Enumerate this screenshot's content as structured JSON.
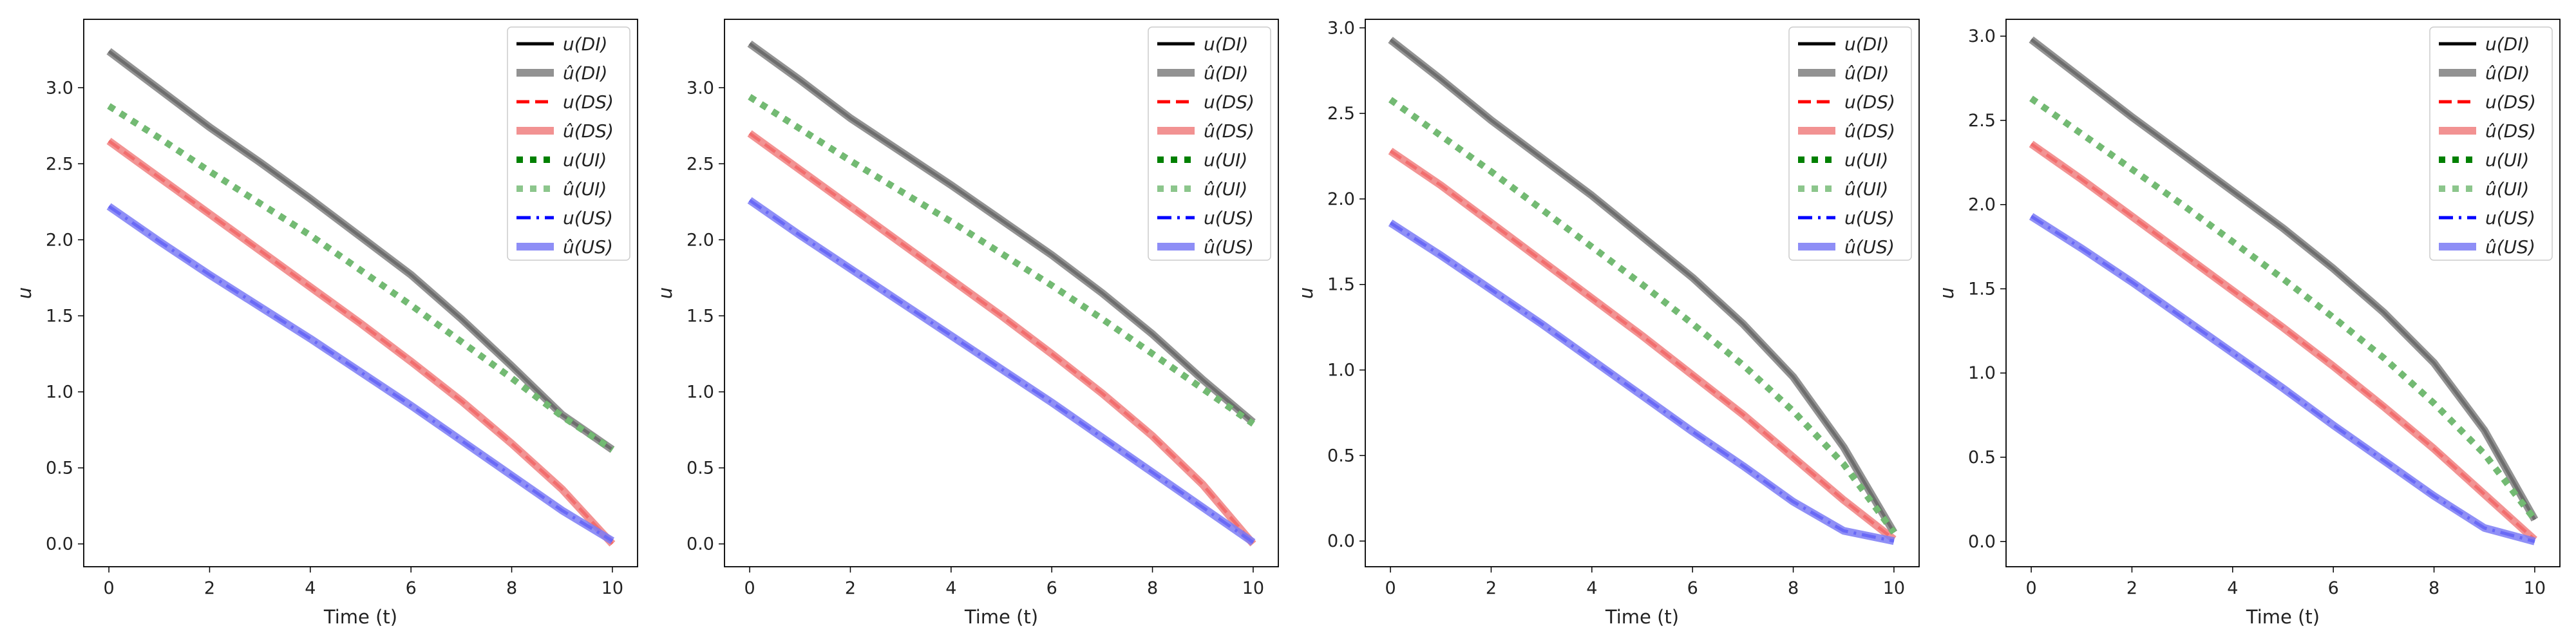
{
  "chart_data": [
    {
      "type": "line",
      "xlabel": "Time (t)",
      "ylabel": "u",
      "xlim": [
        -0.5,
        10.5
      ],
      "ylim": [
        -0.15,
        3.45
      ],
      "xticks": [
        0,
        2,
        4,
        6,
        8,
        10
      ],
      "yticks": [
        0.0,
        0.5,
        1.0,
        1.5,
        2.0,
        2.5,
        3.0
      ],
      "legend_position": "top-right",
      "series": [
        {
          "name": "u(DI)",
          "color": "#000000",
          "style": "solid",
          "x": [
            0,
            1,
            2,
            3,
            4,
            5,
            6,
            7,
            8,
            9,
            10
          ],
          "values": [
            3.24,
            2.99,
            2.74,
            2.51,
            2.27,
            2.02,
            1.77,
            1.48,
            1.17,
            0.85,
            0.62
          ]
        },
        {
          "name": "û(DI)",
          "color": "#808080",
          "style": "thick",
          "x": [
            0,
            1,
            2,
            3,
            4,
            5,
            6,
            7,
            8,
            9,
            10
          ],
          "values": [
            3.24,
            2.99,
            2.74,
            2.51,
            2.27,
            2.02,
            1.77,
            1.48,
            1.17,
            0.85,
            0.62
          ]
        },
        {
          "name": "u(DS)",
          "color": "#ff0000",
          "style": "dashed",
          "x": [
            0,
            1,
            2,
            3,
            4,
            5,
            6,
            7,
            8,
            9,
            10
          ],
          "values": [
            2.65,
            2.41,
            2.17,
            1.93,
            1.69,
            1.45,
            1.2,
            0.94,
            0.66,
            0.36,
            0.0
          ]
        },
        {
          "name": "û(DS)",
          "color": "#f08080",
          "style": "thick",
          "x": [
            0,
            1,
            2,
            3,
            4,
            5,
            6,
            7,
            8,
            9,
            10
          ],
          "values": [
            2.65,
            2.41,
            2.17,
            1.93,
            1.69,
            1.45,
            1.2,
            0.94,
            0.66,
            0.36,
            0.0
          ]
        },
        {
          "name": "u(UI)",
          "color": "#008000",
          "style": "dotted",
          "x": [
            0,
            1,
            2,
            3,
            4,
            5,
            6,
            7,
            8,
            9,
            10
          ],
          "values": [
            2.88,
            2.67,
            2.45,
            2.24,
            2.03,
            1.8,
            1.57,
            1.33,
            1.09,
            0.84,
            0.62
          ]
        },
        {
          "name": "û(UI)",
          "color": "#80c080",
          "style": "thick-dotted",
          "x": [
            0,
            1,
            2,
            3,
            4,
            5,
            6,
            7,
            8,
            9,
            10
          ],
          "values": [
            2.88,
            2.67,
            2.45,
            2.24,
            2.03,
            1.8,
            1.57,
            1.33,
            1.09,
            0.84,
            0.62
          ]
        },
        {
          "name": "u(US)",
          "color": "#0000ff",
          "style": "dashdot",
          "x": [
            0,
            1,
            2,
            3,
            4,
            5,
            6,
            7,
            8,
            9,
            10
          ],
          "values": [
            2.22,
            1.99,
            1.77,
            1.56,
            1.35,
            1.13,
            0.91,
            0.68,
            0.45,
            0.22,
            0.02
          ]
        },
        {
          "name": "û(US)",
          "color": "#7b7bf5",
          "style": "thick",
          "x": [
            0,
            1,
            2,
            3,
            4,
            5,
            6,
            7,
            8,
            9,
            10
          ],
          "values": [
            2.22,
            1.99,
            1.77,
            1.56,
            1.35,
            1.13,
            0.91,
            0.68,
            0.45,
            0.22,
            0.02
          ]
        }
      ]
    },
    {
      "type": "line",
      "xlabel": "Time (t)",
      "ylabel": "u",
      "xlim": [
        -0.5,
        10.5
      ],
      "ylim": [
        -0.15,
        3.45
      ],
      "xticks": [
        0,
        2,
        4,
        6,
        8,
        10
      ],
      "yticks": [
        0.0,
        0.5,
        1.0,
        1.5,
        2.0,
        2.5,
        3.0
      ],
      "legend_position": "top-right",
      "series": [
        {
          "name": "u(DI)",
          "color": "#000000",
          "style": "solid",
          "x": [
            0,
            1,
            2,
            3,
            4,
            5,
            6,
            7,
            8,
            9,
            10
          ],
          "values": [
            3.29,
            3.05,
            2.8,
            2.58,
            2.36,
            2.13,
            1.9,
            1.65,
            1.38,
            1.08,
            0.8
          ]
        },
        {
          "name": "û(DI)",
          "color": "#808080",
          "style": "thick",
          "x": [
            0,
            1,
            2,
            3,
            4,
            5,
            6,
            7,
            8,
            9,
            10
          ],
          "values": [
            3.29,
            3.05,
            2.8,
            2.58,
            2.36,
            2.13,
            1.9,
            1.65,
            1.38,
            1.08,
            0.8
          ]
        },
        {
          "name": "u(DS)",
          "color": "#ff0000",
          "style": "dashed",
          "x": [
            0,
            1,
            2,
            3,
            4,
            5,
            6,
            7,
            8,
            9,
            10
          ],
          "values": [
            2.7,
            2.46,
            2.22,
            1.98,
            1.74,
            1.5,
            1.25,
            0.99,
            0.71,
            0.39,
            0.0
          ]
        },
        {
          "name": "û(DS)",
          "color": "#f08080",
          "style": "thick",
          "x": [
            0,
            1,
            2,
            3,
            4,
            5,
            6,
            7,
            8,
            9,
            10
          ],
          "values": [
            2.7,
            2.46,
            2.22,
            1.98,
            1.74,
            1.5,
            1.25,
            0.99,
            0.71,
            0.39,
            0.0
          ]
        },
        {
          "name": "u(UI)",
          "color": "#008000",
          "style": "dotted",
          "x": [
            0,
            1,
            2,
            3,
            4,
            5,
            6,
            7,
            8,
            9,
            10
          ],
          "values": [
            2.94,
            2.73,
            2.52,
            2.32,
            2.12,
            1.91,
            1.7,
            1.48,
            1.25,
            1.02,
            0.79
          ]
        },
        {
          "name": "û(UI)",
          "color": "#80c080",
          "style": "thick-dotted",
          "x": [
            0,
            1,
            2,
            3,
            4,
            5,
            6,
            7,
            8,
            9,
            10
          ],
          "values": [
            2.94,
            2.73,
            2.52,
            2.32,
            2.12,
            1.91,
            1.7,
            1.48,
            1.25,
            1.02,
            0.79
          ]
        },
        {
          "name": "u(US)",
          "color": "#0000ff",
          "style": "dashdot",
          "x": [
            0,
            1,
            2,
            3,
            4,
            5,
            6,
            7,
            8,
            9,
            10
          ],
          "values": [
            2.26,
            2.03,
            1.81,
            1.59,
            1.37,
            1.15,
            0.93,
            0.7,
            0.47,
            0.24,
            0.01
          ]
        },
        {
          "name": "û(US)",
          "color": "#7b7bf5",
          "style": "thick",
          "x": [
            0,
            1,
            2,
            3,
            4,
            5,
            6,
            7,
            8,
            9,
            10
          ],
          "values": [
            2.26,
            2.03,
            1.81,
            1.59,
            1.37,
            1.15,
            0.93,
            0.7,
            0.47,
            0.24,
            0.01
          ]
        }
      ]
    },
    {
      "type": "line",
      "xlabel": "Time (t)",
      "ylabel": "u",
      "xlim": [
        -0.5,
        10.5
      ],
      "ylim": [
        -0.15,
        3.05
      ],
      "xticks": [
        0,
        2,
        4,
        6,
        8,
        10
      ],
      "yticks": [
        0.0,
        0.5,
        1.0,
        1.5,
        2.0,
        2.5,
        3.0
      ],
      "legend_position": "top-right",
      "series": [
        {
          "name": "u(DI)",
          "color": "#000000",
          "style": "solid",
          "x": [
            0,
            1,
            2,
            3,
            4,
            5,
            6,
            7,
            8,
            9,
            10
          ],
          "values": [
            2.93,
            2.7,
            2.46,
            2.24,
            2.02,
            1.78,
            1.54,
            1.27,
            0.96,
            0.55,
            0.05
          ]
        },
        {
          "name": "û(DI)",
          "color": "#808080",
          "style": "thick",
          "x": [
            0,
            1,
            2,
            3,
            4,
            5,
            6,
            7,
            8,
            9,
            10
          ],
          "values": [
            2.93,
            2.7,
            2.46,
            2.24,
            2.02,
            1.78,
            1.54,
            1.27,
            0.96,
            0.55,
            0.05
          ]
        },
        {
          "name": "u(DS)",
          "color": "#ff0000",
          "style": "dashed",
          "x": [
            0,
            1,
            2,
            3,
            4,
            5,
            6,
            7,
            8,
            9,
            10
          ],
          "values": [
            2.28,
            2.08,
            1.86,
            1.64,
            1.42,
            1.2,
            0.97,
            0.74,
            0.49,
            0.24,
            0.01
          ]
        },
        {
          "name": "û(DS)",
          "color": "#f08080",
          "style": "thick",
          "x": [
            0,
            1,
            2,
            3,
            4,
            5,
            6,
            7,
            8,
            9,
            10
          ],
          "values": [
            2.28,
            2.08,
            1.86,
            1.64,
            1.42,
            1.2,
            0.97,
            0.74,
            0.49,
            0.24,
            0.01
          ]
        },
        {
          "name": "u(UI)",
          "color": "#008000",
          "style": "dotted",
          "x": [
            0,
            1,
            2,
            3,
            4,
            5,
            6,
            7,
            8,
            9,
            10
          ],
          "values": [
            2.58,
            2.37,
            2.16,
            1.94,
            1.72,
            1.5,
            1.27,
            1.03,
            0.76,
            0.45,
            0.05
          ]
        },
        {
          "name": "û(UI)",
          "color": "#80c080",
          "style": "thick-dotted",
          "x": [
            0,
            1,
            2,
            3,
            4,
            5,
            6,
            7,
            8,
            9,
            10
          ],
          "values": [
            2.58,
            2.37,
            2.16,
            1.94,
            1.72,
            1.5,
            1.27,
            1.03,
            0.76,
            0.45,
            0.05
          ]
        },
        {
          "name": "u(US)",
          "color": "#0000ff",
          "style": "dashdot",
          "x": [
            0,
            1,
            2,
            3,
            4,
            5,
            6,
            7,
            8,
            9,
            10
          ],
          "values": [
            1.86,
            1.67,
            1.47,
            1.27,
            1.06,
            0.85,
            0.64,
            0.44,
            0.23,
            0.06,
            0.0
          ]
        },
        {
          "name": "û(US)",
          "color": "#7b7bf5",
          "style": "thick",
          "x": [
            0,
            1,
            2,
            3,
            4,
            5,
            6,
            7,
            8,
            9,
            10
          ],
          "values": [
            1.86,
            1.67,
            1.47,
            1.27,
            1.06,
            0.85,
            0.64,
            0.44,
            0.23,
            0.06,
            0.0
          ]
        }
      ]
    },
    {
      "type": "line",
      "xlabel": "Time (t)",
      "ylabel": "u",
      "xlim": [
        -0.5,
        10.5
      ],
      "ylim": [
        -0.15,
        3.1
      ],
      "xticks": [
        0,
        2,
        4,
        6,
        8,
        10
      ],
      "yticks": [
        0.0,
        0.5,
        1.0,
        1.5,
        2.0,
        2.5,
        3.0
      ],
      "legend_position": "top-right",
      "series": [
        {
          "name": "u(DI)",
          "color": "#000000",
          "style": "solid",
          "x": [
            0,
            1,
            2,
            3,
            4,
            5,
            6,
            7,
            8,
            9,
            10
          ],
          "values": [
            2.98,
            2.75,
            2.52,
            2.3,
            2.08,
            1.86,
            1.62,
            1.36,
            1.06,
            0.66,
            0.13
          ]
        },
        {
          "name": "û(DI)",
          "color": "#808080",
          "style": "thick",
          "x": [
            0,
            1,
            2,
            3,
            4,
            5,
            6,
            7,
            8,
            9,
            10
          ],
          "values": [
            2.98,
            2.75,
            2.52,
            2.3,
            2.08,
            1.86,
            1.62,
            1.36,
            1.06,
            0.66,
            0.13
          ]
        },
        {
          "name": "u(DS)",
          "color": "#ff0000",
          "style": "dashed",
          "x": [
            0,
            1,
            2,
            3,
            4,
            5,
            6,
            7,
            8,
            9,
            10
          ],
          "values": [
            2.36,
            2.15,
            1.93,
            1.71,
            1.49,
            1.27,
            1.04,
            0.8,
            0.55,
            0.28,
            0.01
          ]
        },
        {
          "name": "û(DS)",
          "color": "#f08080",
          "style": "thick",
          "x": [
            0,
            1,
            2,
            3,
            4,
            5,
            6,
            7,
            8,
            9,
            10
          ],
          "values": [
            2.36,
            2.15,
            1.93,
            1.71,
            1.49,
            1.27,
            1.04,
            0.8,
            0.55,
            0.28,
            0.01
          ]
        },
        {
          "name": "u(UI)",
          "color": "#008000",
          "style": "dotted",
          "x": [
            0,
            1,
            2,
            3,
            4,
            5,
            6,
            7,
            8,
            9,
            10
          ],
          "values": [
            2.63,
            2.42,
            2.21,
            2.0,
            1.78,
            1.56,
            1.33,
            1.09,
            0.82,
            0.52,
            0.13
          ]
        },
        {
          "name": "û(UI)",
          "color": "#80c080",
          "style": "thick-dotted",
          "x": [
            0,
            1,
            2,
            3,
            4,
            5,
            6,
            7,
            8,
            9,
            10
          ],
          "values": [
            2.63,
            2.42,
            2.21,
            2.0,
            1.78,
            1.56,
            1.33,
            1.09,
            0.82,
            0.52,
            0.13
          ]
        },
        {
          "name": "u(US)",
          "color": "#0000ff",
          "style": "dashdot",
          "x": [
            0,
            1,
            2,
            3,
            4,
            5,
            6,
            7,
            8,
            9,
            10
          ],
          "values": [
            1.93,
            1.74,
            1.54,
            1.33,
            1.12,
            0.91,
            0.69,
            0.48,
            0.27,
            0.08,
            0.0
          ]
        },
        {
          "name": "û(US)",
          "color": "#7b7bf5",
          "style": "thick",
          "x": [
            0,
            1,
            2,
            3,
            4,
            5,
            6,
            7,
            8,
            9,
            10
          ],
          "values": [
            1.93,
            1.74,
            1.54,
            1.33,
            1.12,
            0.91,
            0.69,
            0.48,
            0.27,
            0.08,
            0.0
          ]
        }
      ]
    }
  ]
}
